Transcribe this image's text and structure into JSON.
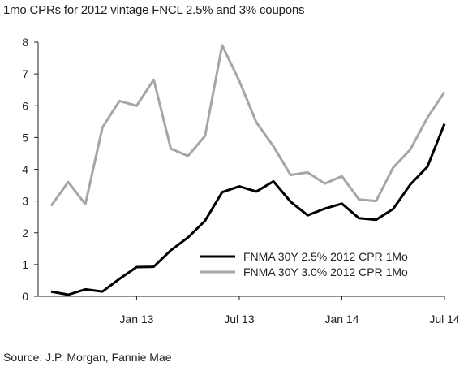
{
  "title": "1mo CPRs for 2012 vintage FNCL 2.5% and 3% coupons",
  "source": "Source: J.P. Morgan, Fannie Mae",
  "chart_data": {
    "type": "line",
    "title": "1mo CPRs for 2012 vintage FNCL 2.5% and 3% coupons",
    "xlabel": "",
    "ylabel": "",
    "ylim": [
      0,
      8
    ],
    "yticks": [
      0,
      1,
      2,
      3,
      4,
      5,
      6,
      7,
      8
    ],
    "x": [
      "2012-08",
      "2012-09",
      "2012-10",
      "2012-11",
      "2012-12",
      "2013-01",
      "2013-02",
      "2013-03",
      "2013-04",
      "2013-05",
      "2013-06",
      "2013-07",
      "2013-08",
      "2013-09",
      "2013-10",
      "2013-11",
      "2013-12",
      "2014-01",
      "2014-02",
      "2014-03",
      "2014-04",
      "2014-05",
      "2014-06",
      "2014-07"
    ],
    "xtick_labels": [
      "Jan 13",
      "Jul 13",
      "Jan 14",
      "Jul 14"
    ],
    "xtick_positions": [
      "2013-01",
      "2013-07",
      "2014-01",
      "2014-07"
    ],
    "grid": false,
    "legend_position": "bottom-right",
    "series": [
      {
        "name": "FNMA 30Y 2.5% 2012 CPR 1Mo",
        "color": "#000000",
        "values": [
          0.15,
          0.05,
          0.22,
          0.15,
          0.55,
          0.92,
          0.93,
          1.45,
          1.85,
          2.38,
          3.28,
          3.46,
          3.3,
          3.62,
          2.98,
          2.55,
          2.76,
          2.92,
          2.46,
          2.41,
          2.75,
          3.52,
          4.08,
          5.43
        ]
      },
      {
        "name": "FNMA 30Y 3.0% 2012 CPR 1Mo",
        "color": "#a6a6a6",
        "values": [
          2.85,
          3.6,
          2.9,
          5.32,
          6.15,
          6.0,
          6.82,
          4.65,
          4.42,
          5.05,
          7.9,
          6.78,
          5.48,
          4.72,
          3.82,
          3.9,
          3.55,
          3.78,
          3.05,
          3.0,
          4.05,
          4.62,
          5.62,
          6.43
        ]
      }
    ]
  }
}
